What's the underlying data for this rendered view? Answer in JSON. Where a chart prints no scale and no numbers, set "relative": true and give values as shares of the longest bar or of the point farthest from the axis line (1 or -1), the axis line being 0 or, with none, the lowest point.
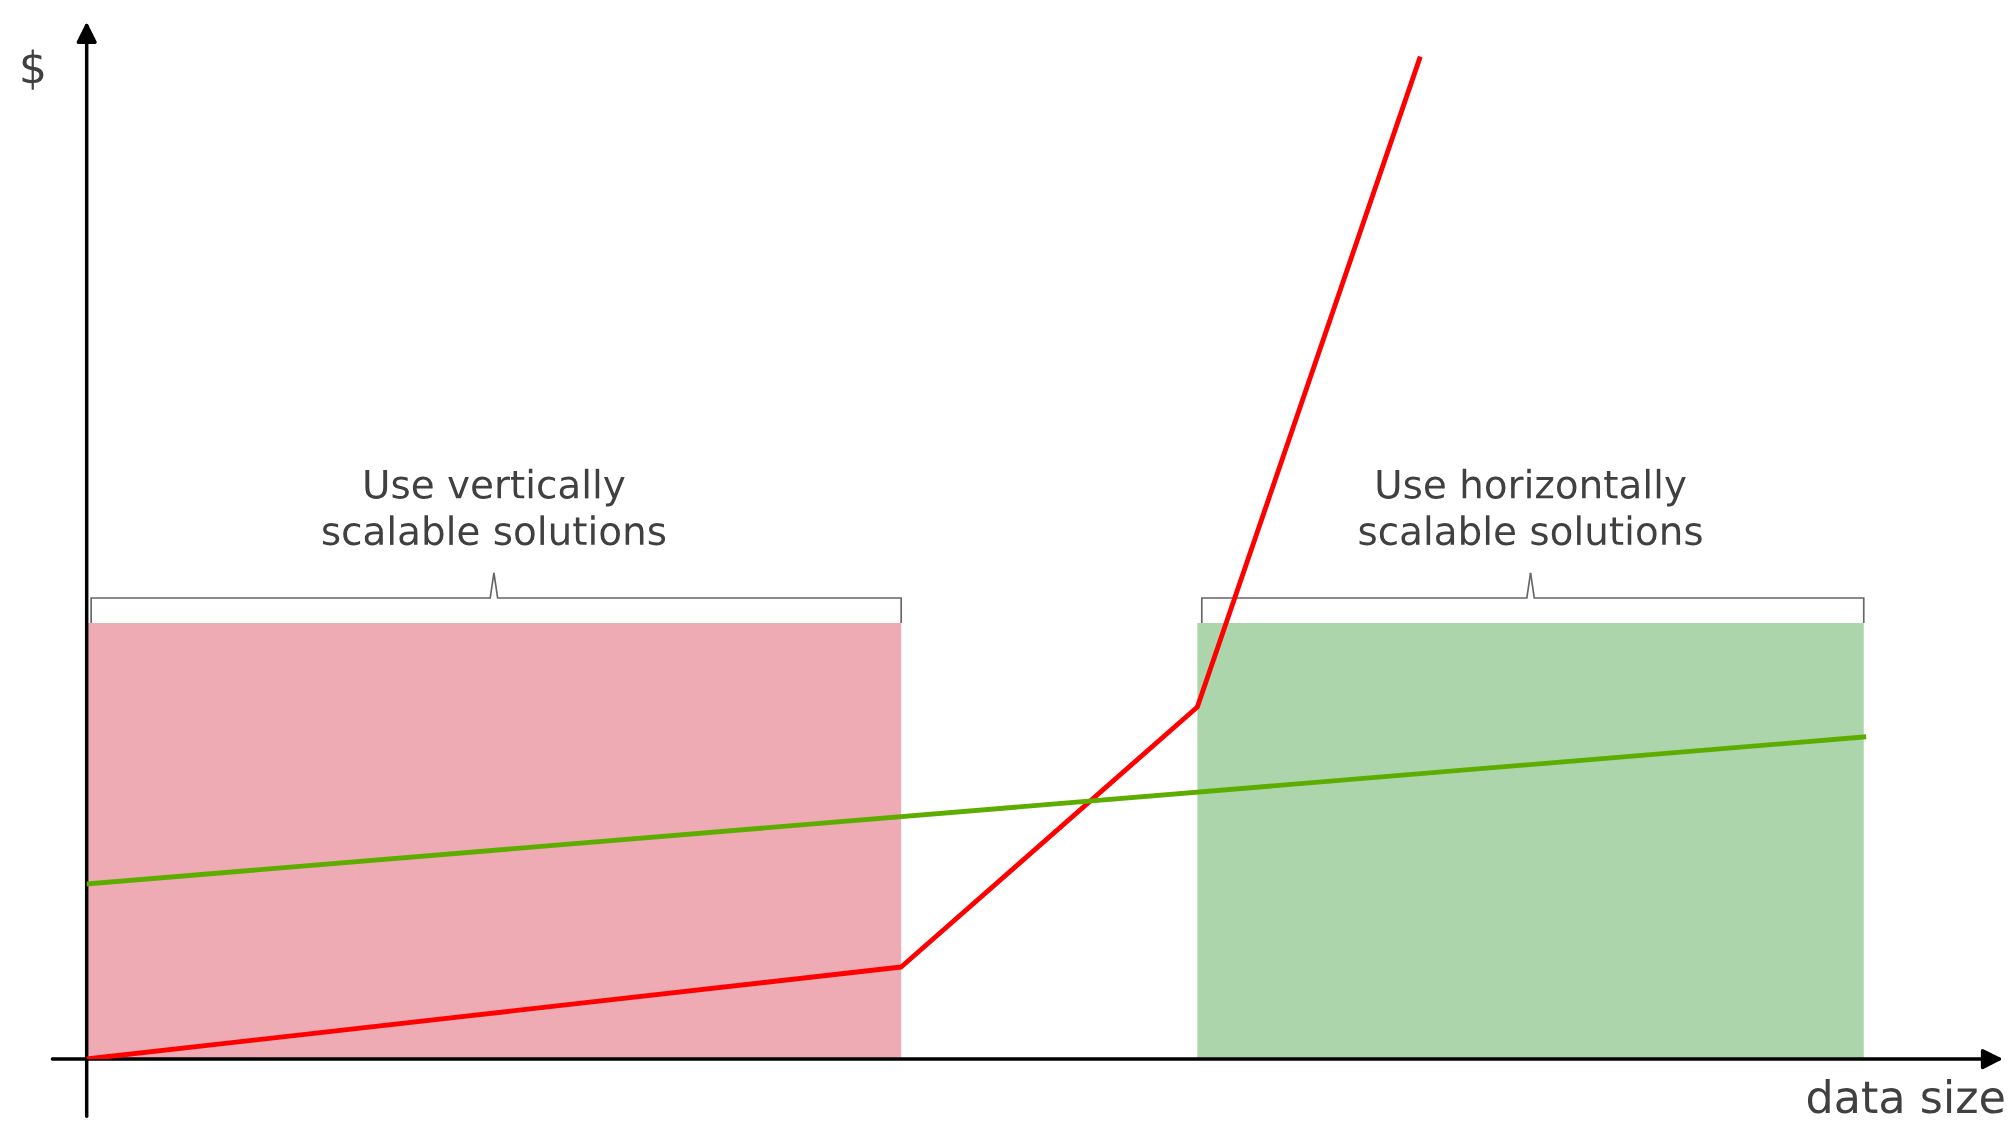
{
  "chart_data": {
    "type": "line",
    "relative": true,
    "xlabel": "data size",
    "ylabel": "$",
    "categories": [
      null,
      null,
      null,
      null,
      null,
      null,
      null,
      null,
      null,
      null,
      null,
      null,
      null,
      null,
      null,
      null,
      null,
      null,
      null,
      null,
      null,
      null,
      null,
      null,
      null
    ],
    "series": [
      {
        "color": "#ff0000",
        "values": [
          0,
          null,
          null,
          null,
          null,
          null,
          null,
          null,
          null,
          null,
          null,
          0.092,
          null,
          null,
          null,
          0.352,
          null,
          null,
          1,
          null,
          null,
          null,
          null,
          null,
          null
        ]
      },
      {
        "color": "#5cad00",
        "values": [
          0.175,
          null,
          null,
          null,
          null,
          null,
          null,
          null,
          null,
          null,
          null,
          null,
          null,
          null,
          null,
          null,
          null,
          null,
          null,
          null,
          null,
          null,
          null,
          null,
          0.322
        ]
      }
    ],
    "annotations": [
      "Use vertically\nscalable solutions",
      "Use horizontally\nscalable solutions"
    ],
    "legend": false,
    "marker": "none",
    "line_style": "solid"
  }
}
